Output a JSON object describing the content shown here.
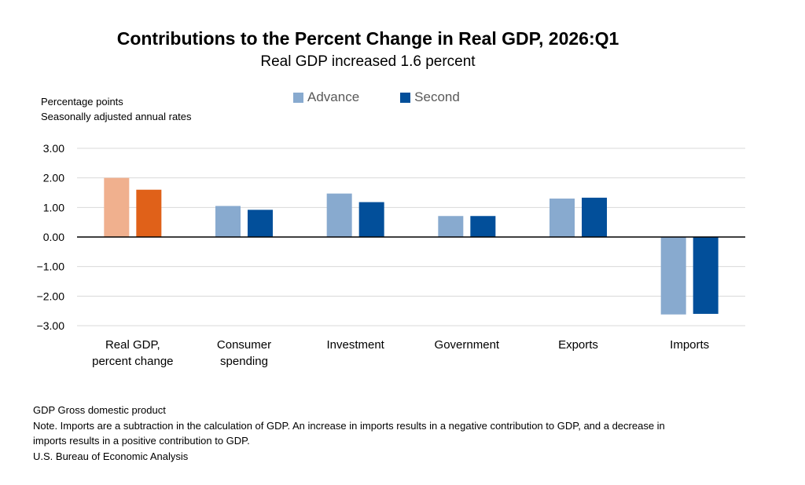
{
  "chart_data": {
    "type": "bar",
    "title": "Contributions to the Percent Change in Real GDP, 2026:Q1",
    "subtitle": "Real GDP increased 1.6 percent",
    "ylabel_lines": [
      "Percentage points",
      "Seasonally adjusted annual rates"
    ],
    "categories": [
      [
        "Real GDP,",
        "percent change"
      ],
      [
        "Consumer",
        "spending"
      ],
      [
        "Investment"
      ],
      [
        "Government"
      ],
      [
        "Exports"
      ],
      [
        "Imports"
      ]
    ],
    "series": [
      {
        "name": "Advance",
        "values": [
          2.0,
          1.05,
          1.47,
          0.71,
          1.3,
          -2.62
        ]
      },
      {
        "name": "Second",
        "values": [
          1.6,
          0.92,
          1.18,
          0.71,
          1.33,
          -2.6
        ]
      }
    ],
    "ylim": [
      -3.0,
      3.0
    ],
    "yticks": [
      "3.00",
      "2.00",
      "1.00",
      "0.00",
      "−1.00",
      "−2.00",
      "−3.00"
    ],
    "ytick_values": [
      3,
      2,
      1,
      0,
      -1,
      -2,
      -3
    ],
    "grid": true,
    "legend_position": "top-center",
    "colors": {
      "advance": "#88aacf",
      "second": "#024f9a",
      "gdp_advance": "#f0b08e",
      "gdp_second": "#e06119",
      "grid": "#d9d9d9",
      "zero_line": "#000000"
    }
  },
  "footnotes": [
    "GDP Gross domestic product",
    "Note. Imports are a subtraction in the calculation of GDP. An increase in imports results in a negative contribution to GDP, and a decrease in imports results in a positive contribution to GDP.",
    "U.S. Bureau of Economic Analysis"
  ]
}
